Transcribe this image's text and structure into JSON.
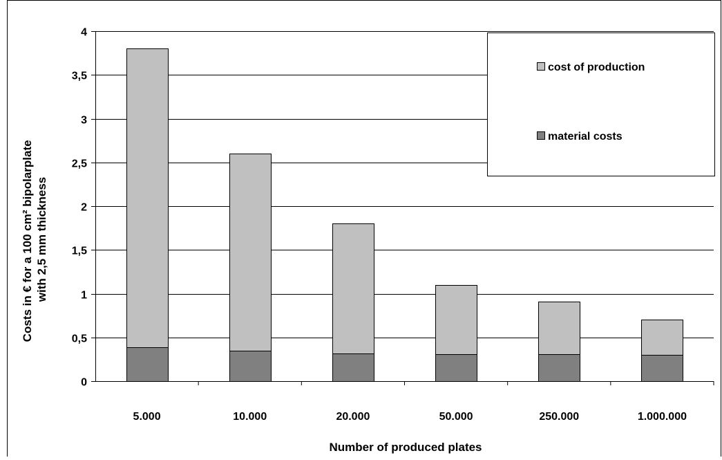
{
  "chart_data": {
    "type": "bar",
    "stacked": true,
    "categories": [
      "5.000",
      "10.000",
      "20.000",
      "50.000",
      "250.000",
      "1.000.000"
    ],
    "series": [
      {
        "name": "material costs",
        "color": "#808080",
        "values": [
          0.39,
          0.35,
          0.32,
          0.31,
          0.31,
          0.3
        ]
      },
      {
        "name": "cost of production",
        "color": "#c0c0c0",
        "values": [
          3.41,
          2.25,
          1.48,
          0.79,
          0.6,
          0.4
        ]
      }
    ],
    "xlabel": "Number of produced plates",
    "ylabel_lines": [
      "Costs in € for a 100 cm² bipolarplate",
      "with 2,5 mm thickness"
    ],
    "ylim": [
      0,
      4
    ],
    "yticks": [
      0,
      0.5,
      1,
      1.5,
      2,
      2.5,
      3,
      3.5,
      4
    ],
    "ytick_labels": [
      "0",
      "0,5",
      "1",
      "1,5",
      "2",
      "2,5",
      "3",
      "3,5",
      "4"
    ],
    "grid": true,
    "legend_position": "top-right",
    "legend_order": [
      "cost of production",
      "material costs"
    ]
  }
}
